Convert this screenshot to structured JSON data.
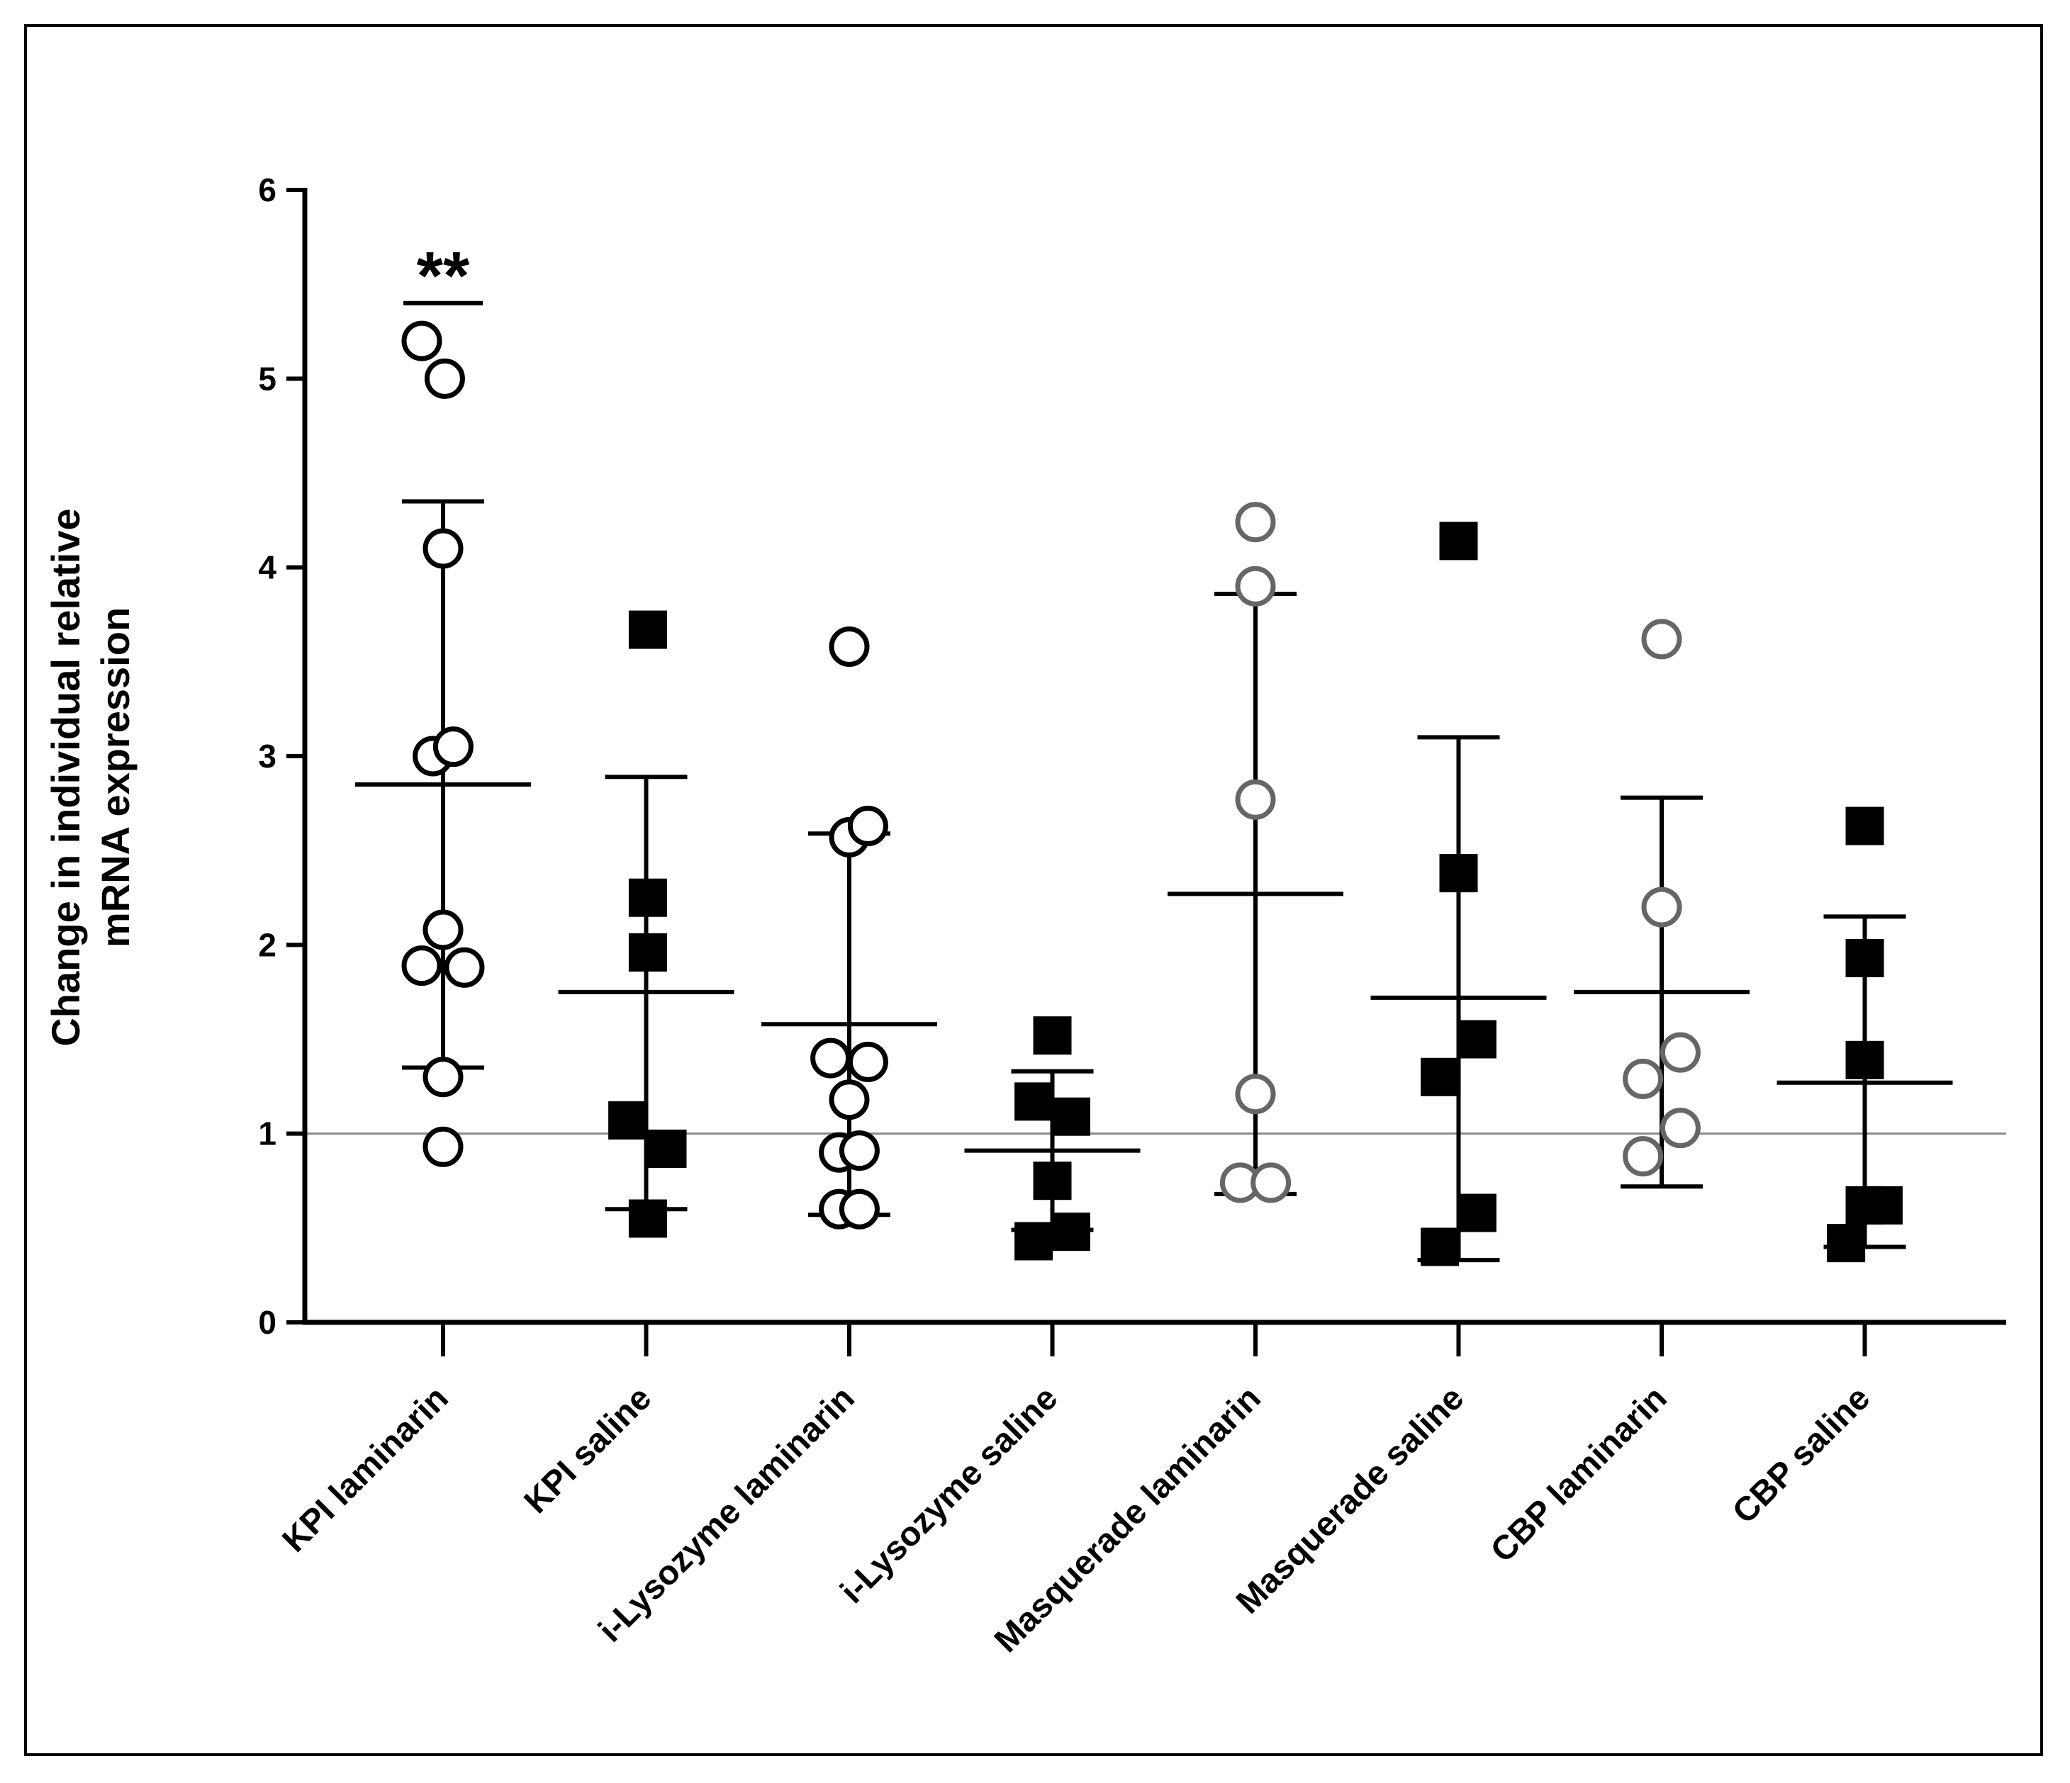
{
  "chart_data": {
    "type": "scatter",
    "ylabel_lines": [
      "Change in individual relative",
      "mRNA expression"
    ],
    "xlabel": "",
    "ylim": [
      0,
      6
    ],
    "yticks": [
      "0",
      "1",
      "2",
      "3",
      "4",
      "5",
      "6"
    ],
    "reference_line_y": 1,
    "categories": [
      "KPI laminarin",
      "KPI saline",
      "i-Lysozyme laminarin",
      "i-Lysozyme saline",
      "Masquerade laminarin",
      "Masquerade saline",
      "CBP laminarin",
      "CBP saline"
    ],
    "annotation": {
      "text": "**",
      "category": "KPI laminarin",
      "bar_y": 5.4
    },
    "series": [
      {
        "name": "KPI laminarin",
        "marker": "circle",
        "color": "#000000",
        "mean": 2.85,
        "sd_upper": 4.35,
        "sd_lower": 1.35,
        "points": [
          [
            -0.25,
            5.2
          ],
          [
            0.02,
            5.0
          ],
          [
            0.0,
            4.1
          ],
          [
            -0.12,
            3.0
          ],
          [
            0.12,
            3.05
          ],
          [
            0.0,
            2.08
          ],
          [
            -0.25,
            1.89
          ],
          [
            0.25,
            1.88
          ],
          [
            0.0,
            1.3
          ],
          [
            0.0,
            0.93
          ]
        ]
      },
      {
        "name": "KPI saline",
        "marker": "square",
        "color": "#000000",
        "mean": 1.75,
        "sd_upper": 2.89,
        "sd_lower": 0.6,
        "points": [
          [
            0.02,
            3.67
          ],
          [
            0.02,
            2.25
          ],
          [
            0.02,
            1.96
          ],
          [
            -0.22,
            1.07
          ],
          [
            0.25,
            0.92
          ],
          [
            0.02,
            0.55
          ]
        ]
      },
      {
        "name": "i-Lysozyme laminarin",
        "marker": "circle",
        "color": "#000000",
        "mean": 1.58,
        "sd_upper": 2.59,
        "sd_lower": 0.57,
        "points": [
          [
            0.0,
            3.58
          ],
          [
            0.0,
            2.57
          ],
          [
            0.22,
            2.63
          ],
          [
            -0.22,
            1.4
          ],
          [
            0.22,
            1.38
          ],
          [
            0.0,
            1.18
          ],
          [
            -0.12,
            0.9
          ],
          [
            0.12,
            0.91
          ],
          [
            -0.12,
            0.6
          ],
          [
            0.12,
            0.6
          ]
        ]
      },
      {
        "name": "i-Lysozyme saline",
        "marker": "square",
        "color": "#000000",
        "mean": 0.91,
        "sd_upper": 1.33,
        "sd_lower": 0.49,
        "points": [
          [
            0.0,
            1.52
          ],
          [
            -0.22,
            1.17
          ],
          [
            0.22,
            1.09
          ],
          [
            0.0,
            0.75
          ],
          [
            -0.22,
            0.43
          ],
          [
            0.22,
            0.48
          ]
        ]
      },
      {
        "name": "Masquerade laminarin",
        "marker": "circle",
        "color": "#666666",
        "mean": 2.27,
        "sd_upper": 3.86,
        "sd_lower": 0.68,
        "points": [
          [
            0.0,
            4.24
          ],
          [
            0.0,
            3.9
          ],
          [
            0.0,
            2.77
          ],
          [
            0.0,
            1.21
          ],
          [
            -0.18,
            0.74
          ],
          [
            0.18,
            0.74
          ]
        ]
      },
      {
        "name": "Masquerade saline",
        "marker": "square",
        "color": "#000000",
        "mean": 1.72,
        "sd_upper": 3.1,
        "sd_lower": 0.33,
        "points": [
          [
            0.0,
            4.14
          ],
          [
            0.0,
            2.38
          ],
          [
            -0.22,
            1.3
          ],
          [
            0.22,
            1.5
          ],
          [
            0.22,
            0.58
          ],
          [
            -0.22,
            0.4
          ]
        ]
      },
      {
        "name": "CBP laminarin",
        "marker": "circle",
        "color": "#666666",
        "mean": 1.75,
        "sd_upper": 2.78,
        "sd_lower": 0.72,
        "points": [
          [
            0.0,
            3.62
          ],
          [
            0.0,
            2.2
          ],
          [
            -0.22,
            1.29
          ],
          [
            0.22,
            1.43
          ],
          [
            0.22,
            1.03
          ],
          [
            -0.22,
            0.88
          ]
        ]
      },
      {
        "name": "CBP saline",
        "marker": "square",
        "color": "#000000",
        "mean": 1.27,
        "sd_upper": 2.15,
        "sd_lower": 0.4,
        "points": [
          [
            0.0,
            2.63
          ],
          [
            0.0,
            1.93
          ],
          [
            0.0,
            1.39
          ],
          [
            0.0,
            0.62
          ],
          [
            0.22,
            0.62
          ],
          [
            -0.22,
            0.42
          ]
        ]
      }
    ]
  }
}
